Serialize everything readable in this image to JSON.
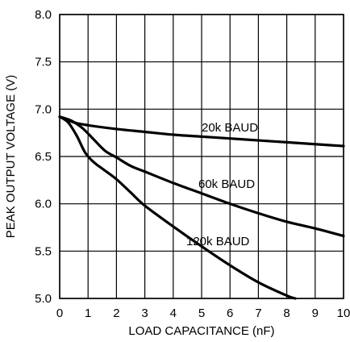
{
  "chart_data": {
    "type": "line",
    "xlabel": "LOAD CAPACITANCE (nF)",
    "ylabel": "PEAK OUTPUT VOLTAGE (V)",
    "xlim": [
      0,
      10
    ],
    "ylim": [
      5.0,
      8.0
    ],
    "grid": true,
    "x_ticks": [
      "0",
      "1",
      "2",
      "3",
      "4",
      "5",
      "6",
      "7",
      "8",
      "9",
      "10"
    ],
    "y_ticks": [
      "5.0",
      "5.5",
      "6.0",
      "6.5",
      "7.0",
      "7.5",
      "8.0"
    ],
    "series": [
      {
        "name": "20k BAUD",
        "x": [
          0,
          0.5,
          1,
          2,
          3,
          4,
          5,
          6,
          7,
          8,
          9,
          10
        ],
        "y": [
          6.92,
          6.86,
          6.83,
          6.79,
          6.76,
          6.73,
          6.71,
          6.69,
          6.67,
          6.65,
          6.63,
          6.61
        ]
      },
      {
        "name": "60k BAUD",
        "x": [
          0,
          0.4,
          0.8,
          1.2,
          1.6,
          2,
          2.5,
          3,
          4,
          5,
          6,
          7,
          8,
          9,
          10
        ],
        "y": [
          6.92,
          6.88,
          6.8,
          6.68,
          6.56,
          6.49,
          6.4,
          6.34,
          6.22,
          6.11,
          6.0,
          5.9,
          5.81,
          5.74,
          5.66
        ]
      },
      {
        "name": "120k BAUD",
        "x": [
          0,
          0.3,
          0.6,
          0.9,
          1.2,
          1.6,
          2,
          2.5,
          3,
          4,
          5,
          6,
          7,
          8,
          8.3
        ],
        "y": [
          6.92,
          6.86,
          6.72,
          6.54,
          6.44,
          6.35,
          6.26,
          6.12,
          5.98,
          5.76,
          5.55,
          5.35,
          5.17,
          5.03,
          5.0
        ]
      }
    ]
  }
}
